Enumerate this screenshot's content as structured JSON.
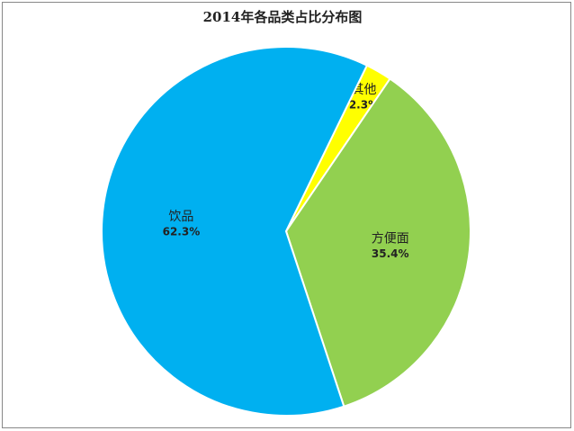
{
  "chart_data": {
    "type": "pie",
    "title": "2014年各品类占比分布图",
    "categories": [
      "其他",
      "方便面",
      "饮品"
    ],
    "values": [
      2.3,
      35.4,
      62.3
    ],
    "value_labels": [
      "2.3%",
      "35.4%",
      "62.3%"
    ],
    "colors": [
      "#ffff00",
      "#92d050",
      "#00b0f0"
    ]
  }
}
